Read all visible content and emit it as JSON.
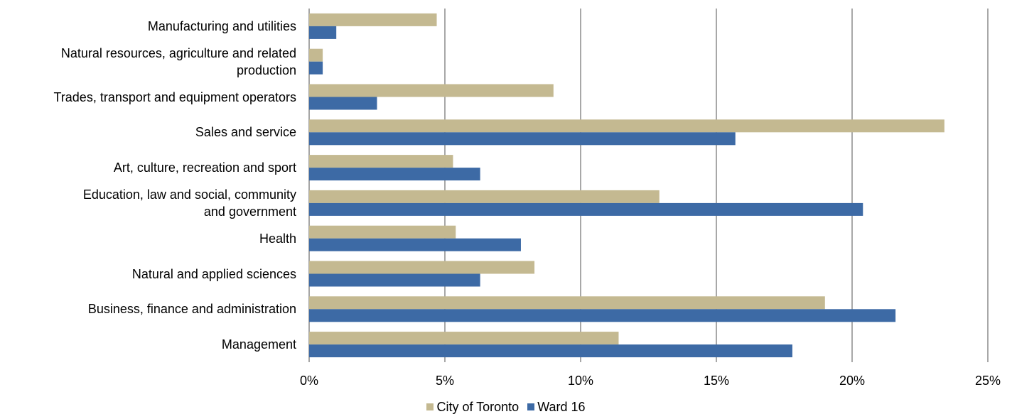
{
  "chart_data": {
    "type": "bar",
    "orientation": "horizontal",
    "title": "",
    "categories": [
      "Manufacturing and utilities",
      "Natural resources, agriculture and related production",
      "Trades, transport and equipment operators",
      "Sales and service",
      "Art, culture, recreation and sport",
      "Education, law and social, community and government",
      "Health",
      "Natural and applied sciences",
      "Business, finance and administration",
      "Management"
    ],
    "category_lines": [
      [
        "Manufacturing and utilities"
      ],
      [
        "Natural resources, agriculture and related",
        "production"
      ],
      [
        "Trades, transport and equipment operators"
      ],
      [
        "Sales and service"
      ],
      [
        "Art, culture, recreation and sport"
      ],
      [
        "Education, law and social, community",
        "and government"
      ],
      [
        "Health"
      ],
      [
        "Natural and applied sciences"
      ],
      [
        "Business, finance and administration"
      ],
      [
        "Management"
      ]
    ],
    "series": [
      {
        "name": "City of Toronto",
        "color": "#c4b991",
        "values": [
          4.7,
          0.5,
          9.0,
          23.4,
          5.3,
          12.9,
          5.4,
          8.3,
          19.0,
          11.4
        ]
      },
      {
        "name": "Ward 16",
        "color": "#3d6aa5",
        "values": [
          1.0,
          0.5,
          2.5,
          15.7,
          6.3,
          20.4,
          7.8,
          6.3,
          21.6,
          17.8
        ]
      }
    ],
    "xlim": [
      0,
      25
    ],
    "x_ticks": [
      "0%",
      "5%",
      "10%",
      "15%",
      "20%",
      "25%"
    ],
    "x_tick_values": [
      0,
      5,
      10,
      15,
      20,
      25
    ],
    "grid": "vertical",
    "legend_position": "bottom-center"
  }
}
